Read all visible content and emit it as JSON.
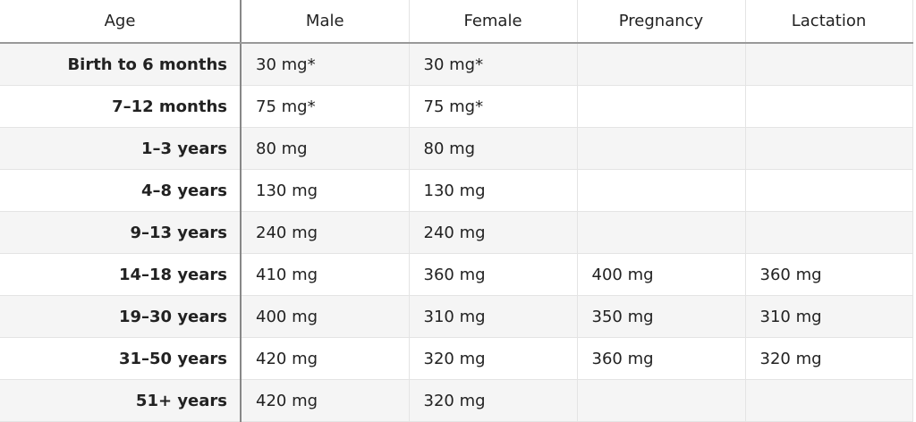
{
  "table": {
    "headers": [
      "Age",
      "Male",
      "Female",
      "Pregnancy",
      "Lactation"
    ],
    "rows": [
      [
        "Birth to 6 months",
        "30 mg*",
        "30 mg*",
        null,
        null
      ],
      [
        "7–12 months",
        "75 mg*",
        "75 mg*",
        null,
        null
      ],
      [
        "1–3 years",
        "80 mg",
        "80 mg",
        null,
        null
      ],
      [
        "4–8 years",
        "130 mg",
        "130 mg",
        null,
        null
      ],
      [
        "9–13 years",
        "240 mg",
        "240 mg",
        null,
        null
      ],
      [
        "14–18 years",
        "410 mg",
        "360 mg",
        "400 mg",
        "360 mg"
      ],
      [
        "19–30 years",
        "400 mg",
        "310 mg",
        "350 mg",
        "310 mg"
      ],
      [
        "31–50 years",
        "420 mg",
        "320 mg",
        "360 mg",
        "320 mg"
      ],
      [
        "51+ years",
        "420 mg",
        "320 mg",
        null,
        null
      ]
    ]
  }
}
